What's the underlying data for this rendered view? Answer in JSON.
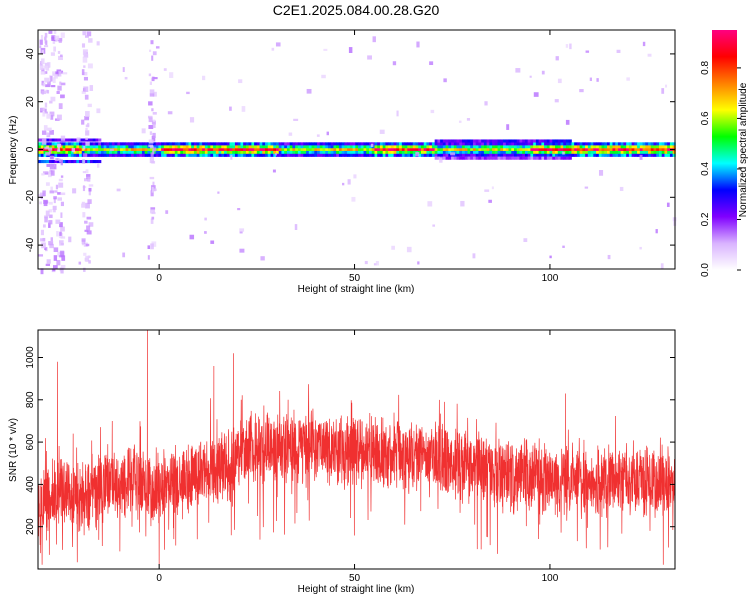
{
  "title": "C2E1.2025.084.00.28.G20",
  "chart_data": [
    {
      "type": "heatmap",
      "xlabel": "Height of straight line (km)",
      "ylabel": "Frequency (Hz)",
      "xlim": [
        -31,
        132
      ],
      "ylim": [
        -50,
        50
      ],
      "x_ticks": [
        0,
        50,
        100
      ],
      "y_ticks": [
        -40,
        -20,
        0,
        20,
        40
      ],
      "colorbar": {
        "label": "Normalized spectral amplitude",
        "range": [
          0.0,
          0.95
        ],
        "ticks": [
          0.0,
          0.2,
          0.4,
          0.6,
          0.8
        ],
        "colors": [
          "#ffffff",
          "#d9b3ff",
          "#8000ff",
          "#0000ff",
          "#00ffff",
          "#00ff00",
          "#ffff00",
          "#ff8000",
          "#ff0000",
          "#ff0080"
        ]
      },
      "ridge": {
        "description_frequency_hz": 0,
        "strong_segments_km": [
          [
            -31,
            -20
          ],
          [
            0,
            30
          ],
          [
            55,
            70
          ],
          [
            95,
            132
          ]
        ]
      }
    },
    {
      "type": "line",
      "xlabel": "Height of straight line (km)",
      "ylabel": "SNR (10 * v/v)",
      "xlim": [
        -31,
        132
      ],
      "ylim": [
        0,
        1130
      ],
      "x_ticks": [
        0,
        50,
        100
      ],
      "y_ticks": [
        200,
        400,
        600,
        800,
        1000
      ],
      "series": [
        {
          "color": "#f03030",
          "envelope": {
            "x": [
              -31,
              -26,
              -21,
              -16,
              -10,
              -4,
              -1,
              2,
              8,
              14,
              18,
              22,
              30,
              40,
              50,
              60,
              70,
              80,
              90,
              100,
              110,
              120,
              132
            ],
            "y": [
              300,
              380,
              330,
              380,
              420,
              400,
              370,
              420,
              440,
              460,
              500,
              560,
              580,
              580,
              560,
              540,
              520,
              480,
              450,
              430,
              420,
              420,
              420
            ]
          },
          "spread": 160,
          "spikes": [
            {
              "x": -26,
              "y": 980
            },
            {
              "x": -22,
              "y": 640
            },
            {
              "x": -12,
              "y": 700
            },
            {
              "x": -3,
              "y": 1130
            },
            {
              "x": 14,
              "y": 960
            },
            {
              "x": 19,
              "y": 1020
            },
            {
              "x": 21,
              "y": 800
            },
            {
              "x": 33,
              "y": 800
            },
            {
              "x": 73,
              "y": 790
            },
            {
              "x": 104,
              "y": 830
            }
          ]
        }
      ]
    }
  ]
}
